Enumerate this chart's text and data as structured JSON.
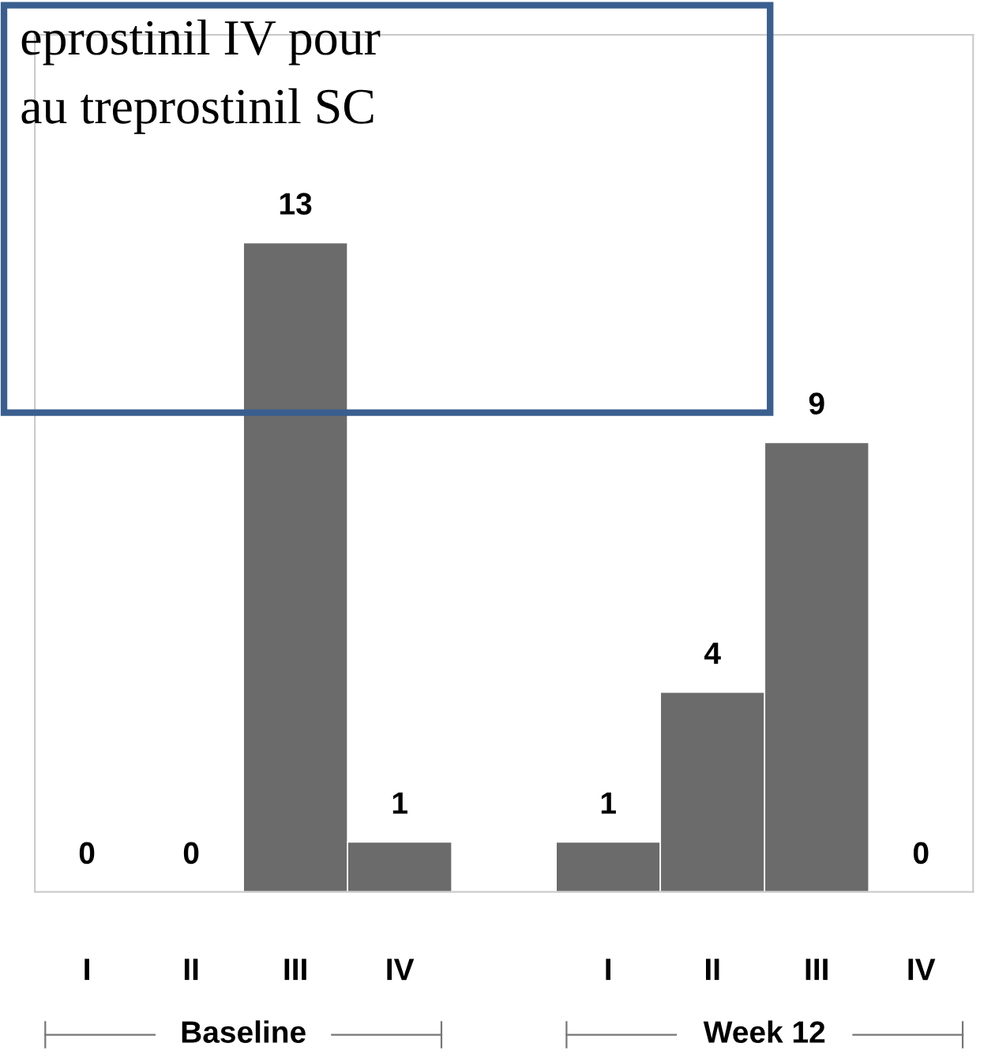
{
  "chart_data": {
    "type": "bar",
    "categories": [
      "I",
      "II",
      "III",
      "IV",
      null,
      "I",
      "II",
      "III",
      "IV"
    ],
    "values": [
      0,
      0,
      13,
      1,
      null,
      1,
      4,
      9,
      0
    ],
    "color": "#6b6b6b",
    "data_labels": true,
    "grid": false,
    "legend": false,
    "annotations": [
      "Baseline",
      "Week 12",
      "eprostinil IV pour",
      "au treprostinil SC"
    ]
  }
}
